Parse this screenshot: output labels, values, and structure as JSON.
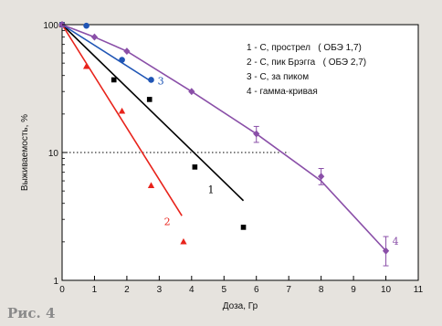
{
  "caption": "Рис. 4",
  "chart_data": {
    "type": "scatter",
    "xlabel": "Доза, Гр",
    "ylabel": "Выживаемость, %",
    "xlim": [
      0,
      11
    ],
    "ylim": [
      1,
      100
    ],
    "yscale": "log",
    "x_ticks": [
      "0",
      "1",
      "2",
      "3",
      "4",
      "5",
      "6",
      "7",
      "8",
      "9",
      "10",
      "11"
    ],
    "y_ticks": [
      "1",
      "10",
      "100"
    ],
    "reference_line": {
      "y": 10,
      "x_range": [
        0,
        7
      ],
      "style": "dotted"
    },
    "legend_position": "top-right",
    "legend": [
      "1 - C, прострел   ( ОБЭ 1,7)",
      "2 - C, пик Брэгга   ( ОБЭ 2,7)",
      "3 - C, за пиком",
      "4 - гамма-кривая"
    ],
    "series": [
      {
        "label": "1",
        "color": "#000000",
        "marker": "square",
        "points": [
          [
            0,
            100
          ],
          [
            1.6,
            37
          ],
          [
            2.7,
            26
          ],
          [
            4.1,
            7.7
          ],
          [
            5.6,
            2.6
          ]
        ],
        "fit": [
          [
            0,
            100
          ],
          [
            5.6,
            4.2
          ]
        ],
        "label_at": [
          4.5,
          4.8
        ]
      },
      {
        "label": "2",
        "color": "#e8231b",
        "marker": "triangle",
        "points": [
          [
            0,
            100
          ],
          [
            0.75,
            47
          ],
          [
            1.85,
            21
          ],
          [
            2.75,
            5.5
          ],
          [
            3.75,
            2.0
          ]
        ],
        "fit": [
          [
            0,
            100
          ],
          [
            3.7,
            3.2
          ]
        ],
        "label_at": [
          3.15,
          2.7
        ]
      },
      {
        "label": "3",
        "color": "#1f55b5",
        "marker": "circle",
        "points": [
          [
            0,
            100
          ],
          [
            0.75,
            98
          ],
          [
            1.85,
            53
          ],
          [
            2.75,
            37
          ]
        ],
        "fit": [
          [
            0,
            100
          ],
          [
            2.75,
            36
          ]
        ],
        "label_at": [
          2.95,
          34
        ]
      },
      {
        "label": "4",
        "color": "#8a4fa8",
        "marker": "diamond",
        "points": [
          [
            0,
            100
          ],
          [
            1.0,
            80
          ],
          [
            2.0,
            62
          ],
          [
            4.0,
            30
          ],
          [
            6.0,
            14
          ],
          [
            8.0,
            6.5
          ],
          [
            10.0,
            1.7
          ]
        ],
        "errors": [
          [
            6.0,
            12,
            16
          ],
          [
            8.0,
            5.6,
            7.5
          ],
          [
            10.0,
            1.3,
            2.2
          ]
        ],
        "fit": [
          [
            0,
            100
          ],
          [
            1,
            80
          ],
          [
            2,
            62
          ],
          [
            4,
            30
          ],
          [
            6,
            14
          ],
          [
            8,
            6.0
          ],
          [
            10,
            1.7
          ]
        ],
        "label_at": [
          10.2,
          1.9
        ]
      }
    ]
  }
}
